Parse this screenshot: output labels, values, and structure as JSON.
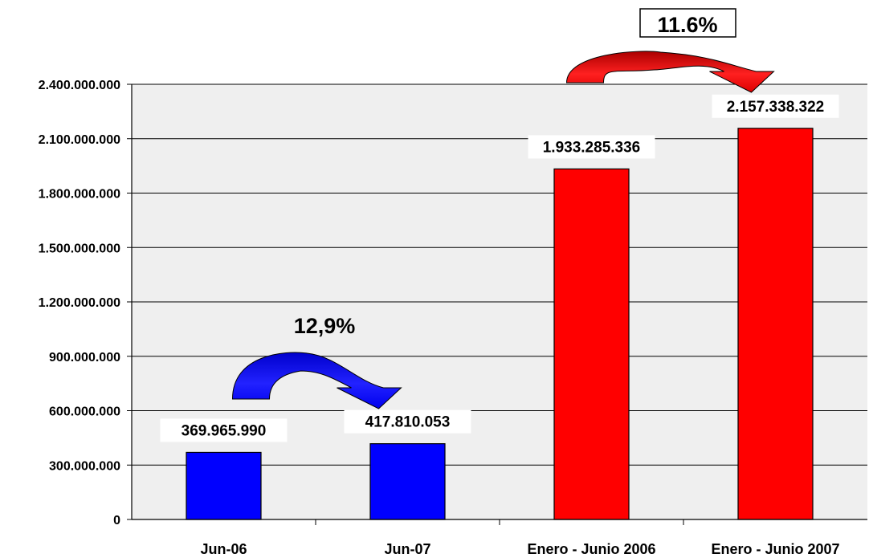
{
  "chart_data": {
    "type": "bar",
    "title": "",
    "xlabel": "",
    "ylabel": "",
    "categories": [
      "Jun-06",
      "Jun-07",
      "Enero - Junio 2006",
      "Enero - Junio 2007"
    ],
    "values": [
      369965990,
      417810053,
      1933285336,
      2157338322
    ],
    "value_labels": [
      "369.965.990",
      "417.810.053",
      "1.933.285.336",
      "2.157.338.322"
    ],
    "bar_colors": [
      "#0000ff",
      "#0000ff",
      "#ff0000",
      "#ff0000"
    ],
    "ylim": [
      0,
      2400000000
    ],
    "y_ticks": [
      {
        "value": 0,
        "label": "0"
      },
      {
        "value": 300000000,
        "label": "300.000.000"
      },
      {
        "value": 600000000,
        "label": "600.000.000"
      },
      {
        "value": 900000000,
        "label": "900.000.000"
      },
      {
        "value": 1200000000,
        "label": "1.200.000.000"
      },
      {
        "value": 1500000000,
        "label": "1.500.000.000"
      },
      {
        "value": 1800000000,
        "label": "1.800.000.000"
      },
      {
        "value": 2100000000,
        "label": "2.100.000.000"
      },
      {
        "value": 2400000000,
        "label": "2.400.000.000"
      }
    ],
    "grid": true,
    "plot_background": "#efefef",
    "annotations": [
      {
        "text": "12,9%",
        "from": "Jun-06",
        "to": "Jun-07",
        "arrow_color": "#0000ff",
        "boxed": false
      },
      {
        "text": "11.6%",
        "from": "Enero - Junio 2006",
        "to": "Enero - Junio 2007",
        "arrow_color": "#ff0000",
        "boxed": true
      }
    ]
  }
}
